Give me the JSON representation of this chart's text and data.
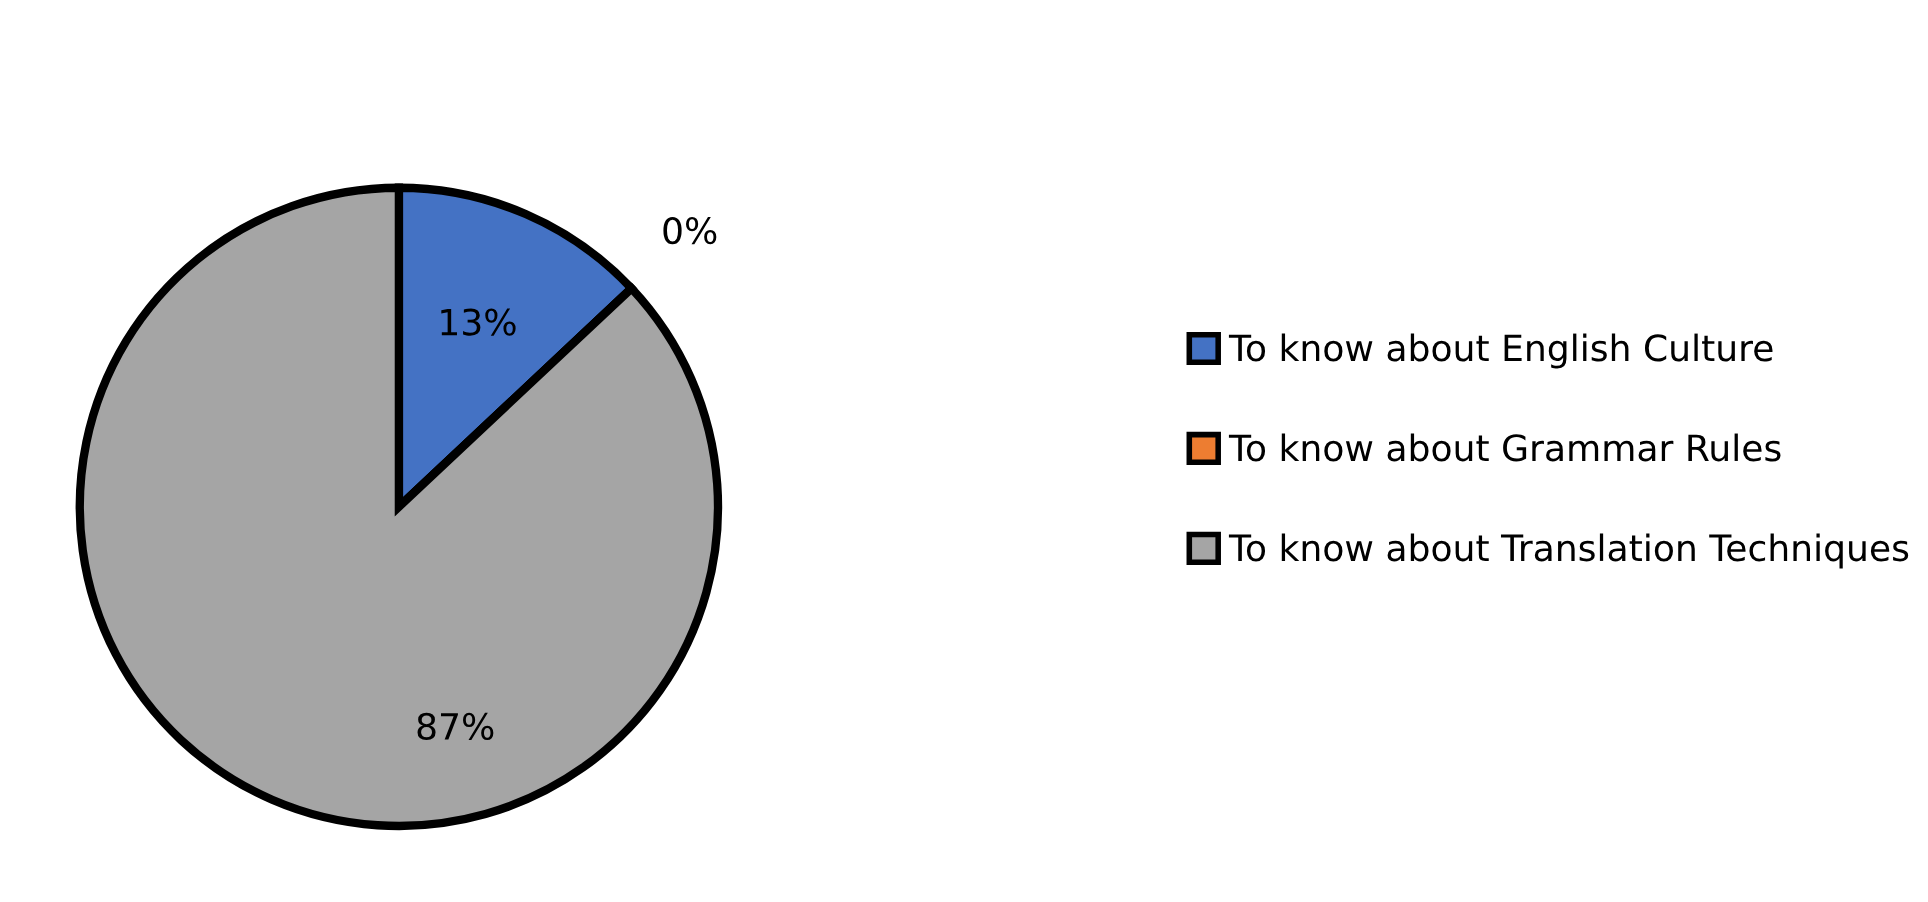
{
  "chart_data": {
    "type": "pie",
    "categories": [
      "To know about English Culture",
      "To know about Grammar Rules",
      "To know about Translation Techniques"
    ],
    "values": [
      13,
      0,
      87
    ],
    "colors": [
      "#4472c4",
      "#ed7d31",
      "#a5a5a5"
    ],
    "value_labels": [
      "13%",
      "0%",
      "87%"
    ],
    "legend": "right"
  }
}
